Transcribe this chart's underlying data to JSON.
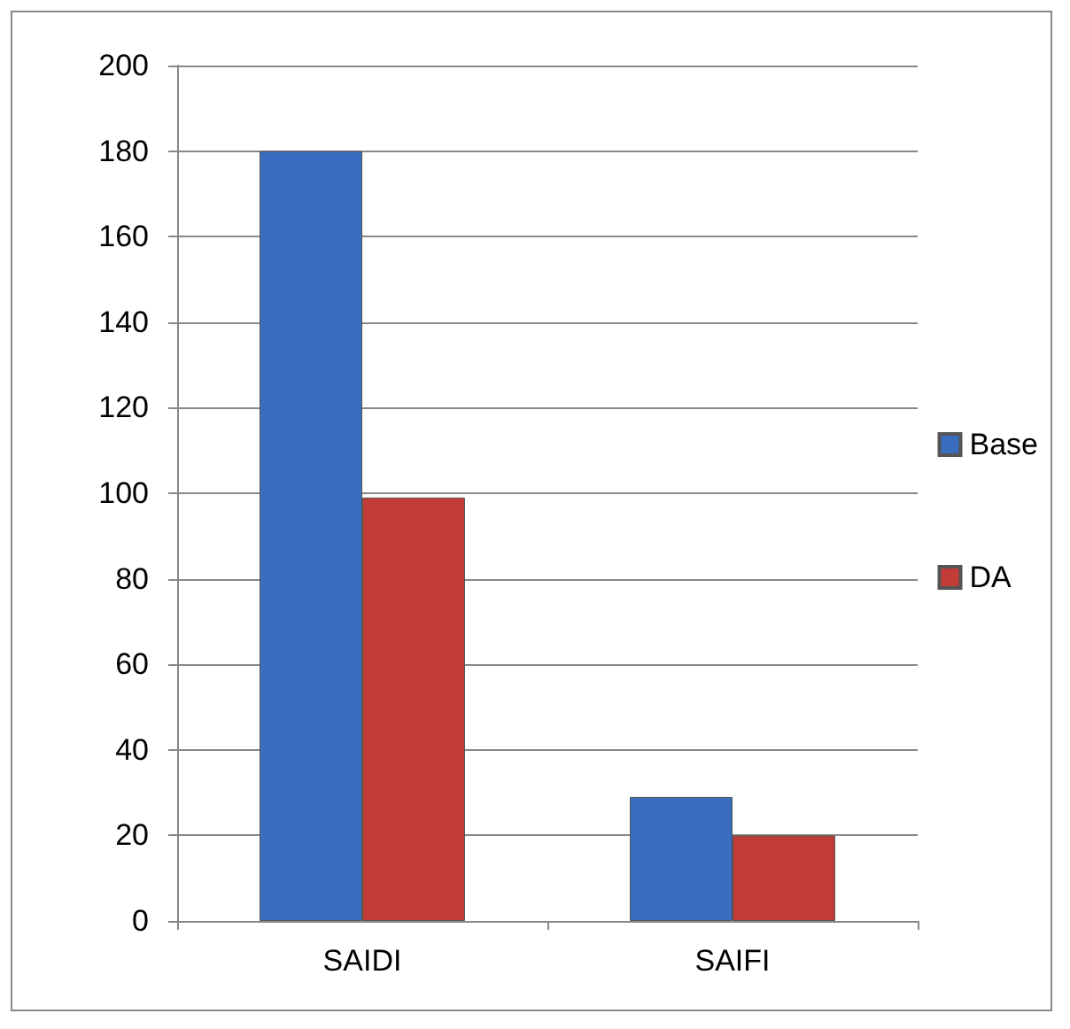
{
  "chart_data": {
    "type": "bar",
    "categories": [
      "SAIDI",
      "SAIFI"
    ],
    "series": [
      {
        "name": "Base",
        "color": "#3a6cc0",
        "values": [
          180,
          29
        ]
      },
      {
        "name": "DA",
        "color": "#c23b37",
        "values": [
          99,
          20
        ]
      }
    ],
    "ylim": [
      0,
      200
    ],
    "yticks": [
      0,
      20,
      40,
      60,
      80,
      100,
      120,
      140,
      160,
      180,
      200
    ],
    "grid": "y",
    "legend": "right"
  }
}
